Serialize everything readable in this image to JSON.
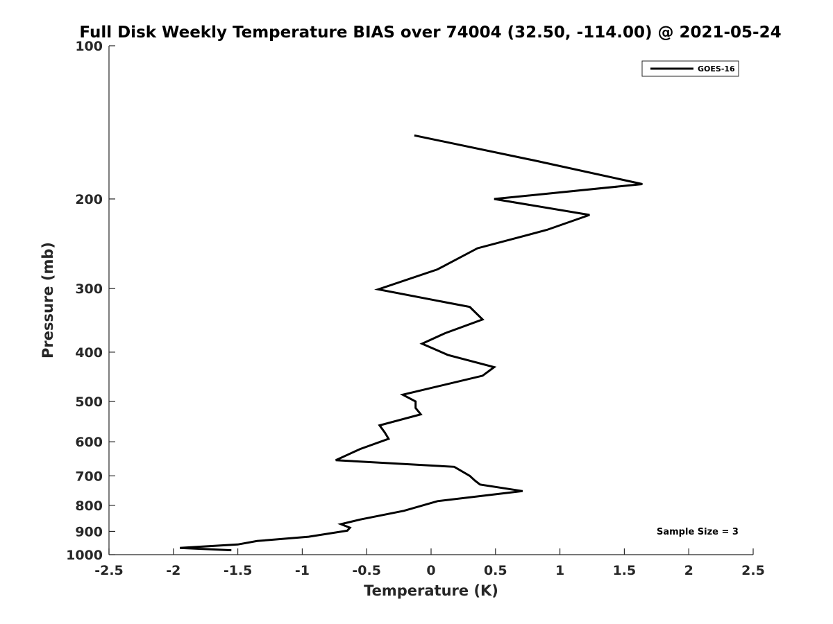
{
  "chart_data": {
    "type": "line",
    "title": "Full Disk Weekly Temperature BIAS over 74004 (32.50, -114.00) @ 2021-05-24",
    "xlabel": "Temperature (K)",
    "ylabel": "Pressure (mb)",
    "xlim": [
      -2.5,
      2.5
    ],
    "ylim": [
      100,
      1000
    ],
    "y_scale": "log",
    "y_reversed": true,
    "x_ticks": [
      -2.5,
      -2,
      -1.5,
      -1,
      -0.5,
      0,
      0.5,
      1,
      1.5,
      2,
      2.5
    ],
    "x_tick_labels": [
      "-2.5",
      "-2",
      "-1.5",
      "-1",
      "-0.5",
      "0",
      "0.5",
      "1",
      "1.5",
      "2",
      "2.5"
    ],
    "y_ticks": [
      100,
      200,
      300,
      400,
      500,
      600,
      700,
      800,
      900,
      1000
    ],
    "y_tick_labels": [
      "100",
      "200",
      "300",
      "400",
      "500",
      "600",
      "700",
      "800",
      "900",
      "1000"
    ],
    "grid": false,
    "legend_position": "top-right",
    "annotation": "Sample Size = 3",
    "series": [
      {
        "name": "GOES-16",
        "color": "#000000",
        "x": [
          -0.13,
          0.8,
          1.64,
          0.49,
          1.23,
          0.9,
          0.36,
          0.05,
          -0.41,
          0.3,
          0.4,
          0.11,
          -0.07,
          0.13,
          0.49,
          0.4,
          -0.22,
          -0.12,
          -0.12,
          -0.08,
          -0.4,
          -0.36,
          -0.33,
          -0.55,
          -0.74,
          0.18,
          0.3,
          0.34,
          0.38,
          0.71,
          0.05,
          -0.21,
          -0.55,
          -0.7,
          -0.63,
          -0.65,
          -0.95,
          -1.35,
          -1.5,
          -1.95,
          -1.55
        ],
        "y": [
          150,
          168,
          187,
          200,
          215,
          230,
          250,
          275,
          301,
          326,
          345,
          367,
          385,
          405,
          428,
          445,
          485,
          500,
          515,
          530,
          557,
          575,
          592,
          620,
          652,
          672,
          700,
          715,
          728,
          750,
          785,
          820,
          853,
          871,
          885,
          897,
          922,
          940,
          955,
          970,
          980
        ]
      }
    ]
  }
}
